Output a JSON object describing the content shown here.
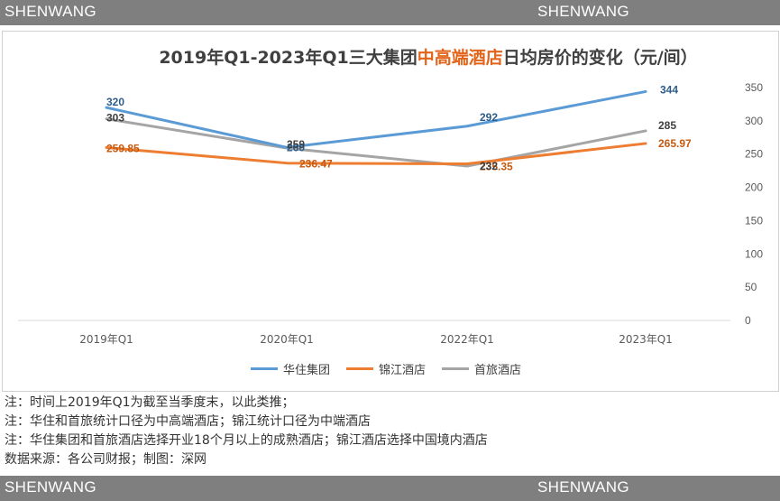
{
  "watermark": {
    "top_left": "SHENWANG",
    "top_right": "SHENWANG",
    "bottom_left": "SHENWANG",
    "bottom_right": "SHENWANG"
  },
  "title_parts": {
    "prefix": "2019年Q1-2023年Q1三大集团",
    "highlight": "中高端酒店",
    "suffix": "日均房价的变化（元/间）"
  },
  "colors": {
    "huazhu": "#5b9bd5",
    "jinjiang": "#ed7d31",
    "shoulv": "#a5a5a5",
    "highlight": "#e2641a"
  },
  "chart_data": {
    "type": "line",
    "title": "2019年Q1-2023年Q1三大集团中高端酒店日均房价的变化（元/间）",
    "categories": [
      "2019年Q1",
      "2020年Q1",
      "2022年Q1",
      "2023年Q1"
    ],
    "series": [
      {
        "name": "华住集团",
        "values": [
          320,
          260,
          292,
          344
        ],
        "labels": [
          "320",
          "260",
          "292",
          "344"
        ]
      },
      {
        "name": "锦江酒店",
        "values": [
          259.85,
          236.47,
          235.35,
          265.97
        ],
        "labels": [
          "259.85",
          "236.47",
          "235.35",
          "265.97"
        ]
      },
      {
        "name": "首旅酒店",
        "values": [
          303,
          259,
          232,
          285
        ],
        "labels": [
          "303",
          "259",
          "232",
          "285"
        ]
      }
    ],
    "ylim": [
      0,
      350
    ],
    "yticks": [
      "0",
      "50",
      "100",
      "150",
      "200",
      "250",
      "300",
      "350"
    ],
    "grid": false,
    "legend_position": "bottom"
  },
  "notes": [
    "注：时间上2019年Q1为截至当季度末，以此类推；",
    "注：华住和首旅统计口径为中高端酒店；锦江统计口径为中端酒店",
    "注：华住集团和首旅酒店选择开业18个月以上的成熟酒店；锦江酒店选择中国境内酒店",
    "数据来源：各公司财报；制图：深网"
  ]
}
